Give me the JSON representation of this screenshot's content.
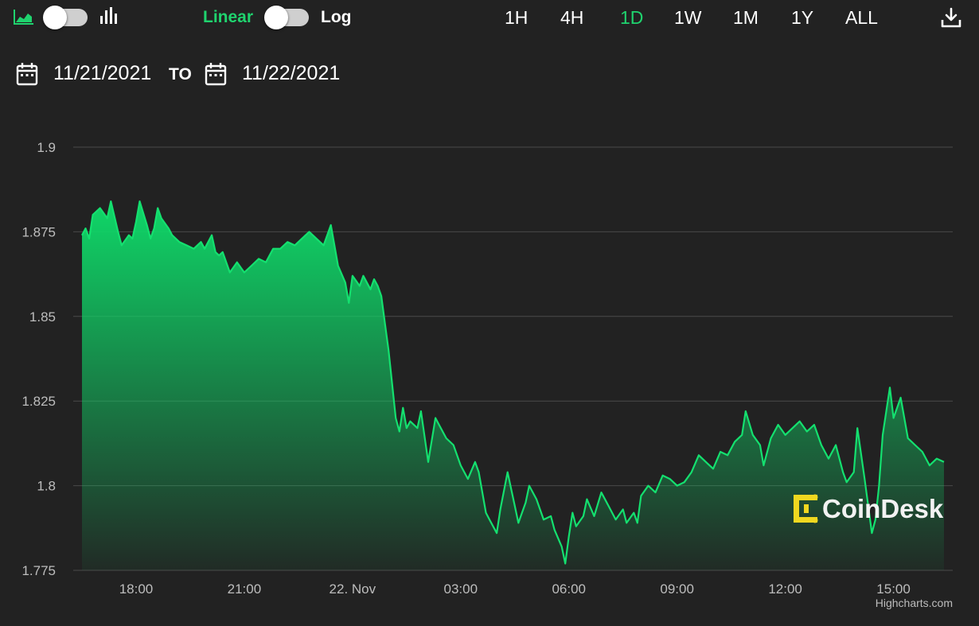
{
  "toolbar": {
    "icons": [
      "area-chart-icon",
      "bar-chart-icon",
      "download-icon"
    ],
    "scale_linear_label": "Linear",
    "scale_log_label": "Log",
    "ranges": [
      "1H",
      "4H",
      "1D",
      "1W",
      "1M",
      "1Y",
      "ALL"
    ],
    "active_range": "1D"
  },
  "date_range": {
    "from": "11/21/2021",
    "to_label": "TO",
    "to": "11/22/2021",
    "icon": "calendar-icon"
  },
  "colors": {
    "accent": "#1fd36e",
    "background": "#222222",
    "grid": "#4a4a4a",
    "line": "#14e06f",
    "watermark_yellow": "#f0d820"
  },
  "watermark": {
    "text": "CoinDesk"
  },
  "credits": "Highcharts.com",
  "chart_data": {
    "type": "area",
    "ylim": [
      1.775,
      1.9
    ],
    "y_ticks": [
      1.775,
      1.8,
      1.825,
      1.85,
      1.875,
      1.9
    ],
    "y_tick_labels": [
      "1.775",
      "1.8",
      "1.825",
      "1.85",
      "1.875",
      "1.9"
    ],
    "x_ticks": [
      18,
      21,
      24,
      27,
      30,
      33,
      36,
      39
    ],
    "x_tick_labels": [
      "18:00",
      "21:00",
      "22. Nov",
      "03:00",
      "06:00",
      "09:00",
      "12:00",
      "15:00"
    ],
    "xlim": [
      16.5,
      40.4
    ],
    "grid": true,
    "legend": false,
    "series": [
      {
        "x": [
          16.5,
          16.6,
          16.7,
          16.8,
          17.0,
          17.2,
          17.3,
          17.5,
          17.6,
          17.8,
          17.9,
          18.0,
          18.1,
          18.3,
          18.4,
          18.5,
          18.6,
          18.7,
          18.9,
          19.0,
          19.2,
          19.4,
          19.6,
          19.8,
          19.9,
          20.1,
          20.2,
          20.3,
          20.4,
          20.6,
          20.8,
          21.0,
          21.2,
          21.4,
          21.6,
          21.8,
          22.0,
          22.2,
          22.4,
          22.6,
          22.8,
          23.0,
          23.2,
          23.4,
          23.6,
          23.8,
          23.9,
          24.0,
          24.2,
          24.3,
          24.5,
          24.6,
          24.7,
          24.8,
          24.9,
          25.0,
          25.1,
          25.2,
          25.3,
          25.4,
          25.5,
          25.6,
          25.8,
          25.9,
          26.1,
          26.3,
          26.4,
          26.6,
          26.8,
          27.0,
          27.2,
          27.4,
          27.5,
          27.7,
          27.8,
          28.0,
          28.1,
          28.3,
          28.5,
          28.6,
          28.8,
          28.9,
          29.1,
          29.3,
          29.5,
          29.6,
          29.8,
          29.9,
          30.0,
          30.1,
          30.2,
          30.4,
          30.5,
          30.7,
          30.9,
          31.1,
          31.3,
          31.5,
          31.6,
          31.8,
          31.9,
          32.0,
          32.2,
          32.4,
          32.6,
          32.8,
          33.0,
          33.2,
          33.4,
          33.6,
          33.8,
          34.0,
          34.2,
          34.4,
          34.6,
          34.8,
          34.9,
          35.1,
          35.3,
          35.4,
          35.6,
          35.8,
          36.0,
          36.2,
          36.4,
          36.6,
          36.8,
          37.0,
          37.2,
          37.4,
          37.6,
          37.7,
          37.9,
          38.0,
          38.2,
          38.4,
          38.5,
          38.6,
          38.7,
          38.9,
          39.0,
          39.2,
          39.4,
          39.6,
          39.8,
          40.0,
          40.2,
          40.4
        ],
        "y": [
          1.874,
          1.876,
          1.873,
          1.88,
          1.882,
          1.879,
          1.884,
          1.875,
          1.871,
          1.874,
          1.873,
          1.878,
          1.884,
          1.877,
          1.873,
          1.876,
          1.882,
          1.879,
          1.876,
          1.874,
          1.872,
          1.871,
          1.87,
          1.872,
          1.87,
          1.874,
          1.869,
          1.868,
          1.869,
          1.863,
          1.866,
          1.863,
          1.865,
          1.867,
          1.866,
          1.87,
          1.87,
          1.872,
          1.871,
          1.873,
          1.875,
          1.873,
          1.871,
          1.877,
          1.865,
          1.86,
          1.854,
          1.862,
          1.859,
          1.862,
          1.858,
          1.861,
          1.859,
          1.856,
          1.848,
          1.84,
          1.83,
          1.82,
          1.816,
          1.823,
          1.817,
          1.819,
          1.817,
          1.822,
          1.807,
          1.82,
          1.818,
          1.814,
          1.812,
          1.806,
          1.802,
          1.807,
          1.804,
          1.792,
          1.79,
          1.786,
          1.793,
          1.804,
          1.794,
          1.789,
          1.795,
          1.8,
          1.796,
          1.79,
          1.791,
          1.787,
          1.782,
          1.777,
          1.785,
          1.792,
          1.788,
          1.791,
          1.796,
          1.791,
          1.798,
          1.794,
          1.79,
          1.793,
          1.789,
          1.792,
          1.789,
          1.797,
          1.8,
          1.798,
          1.803,
          1.802,
          1.8,
          1.801,
          1.804,
          1.809,
          1.807,
          1.805,
          1.81,
          1.809,
          1.813,
          1.815,
          1.822,
          1.815,
          1.812,
          1.806,
          1.814,
          1.818,
          1.815,
          1.817,
          1.819,
          1.816,
          1.818,
          1.812,
          1.808,
          1.812,
          1.804,
          1.801,
          1.804,
          1.817,
          1.802,
          1.786,
          1.79,
          1.8,
          1.815,
          1.829,
          1.82,
          1.826,
          1.814,
          1.812,
          1.81,
          1.806,
          1.808,
          1.807
        ]
      }
    ]
  }
}
